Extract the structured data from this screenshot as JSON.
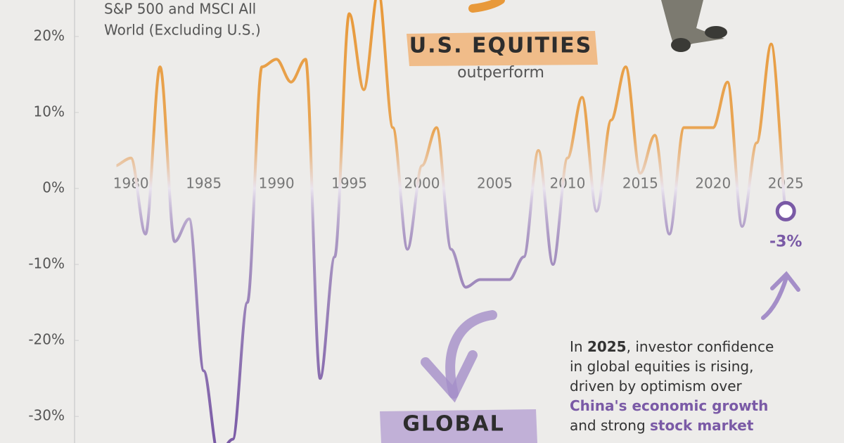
{
  "chart_data": {
    "type": "line",
    "title": [
      "S&P 500 and MSCI All",
      "World (Excluding U.S.)"
    ],
    "upper_label": "U.S. EQUITIES",
    "upper_sublabel": "outperform",
    "lower_label": "GLOBAL",
    "annotation": [
      [
        {
          "text": "In "
        },
        {
          "text": "2025",
          "style": "bold"
        },
        {
          "text": ", investor confidence"
        }
      ],
      [
        {
          "text": "in global equities is rising,"
        }
      ],
      [
        {
          "text": "driven by optimism over"
        }
      ],
      [
        {
          "text": "China's economic growth",
          "style": "highlight"
        }
      ],
      [
        {
          "text": "and strong "
        },
        {
          "text": "stock market",
          "style": "highlight"
        }
      ]
    ],
    "x": [
      1979,
      1980,
      1981,
      1982,
      1983,
      1984,
      1985,
      1986,
      1987,
      1988,
      1989,
      1990,
      1991,
      1992,
      1993,
      1994,
      1995,
      1996,
      1997,
      1998,
      1999,
      2000,
      2001,
      2002,
      2003,
      2004,
      2005,
      2006,
      2007,
      2008,
      2009,
      2010,
      2011,
      2012,
      2013,
      2014,
      2015,
      2016,
      2017,
      2018,
      2019,
      2020,
      2021,
      2022,
      2023,
      2024,
      2025
    ],
    "series": [
      {
        "color": "#e8993a",
        "negative_color": "#7a5aa6",
        "values": [
          3,
          4,
          -6,
          16,
          -7,
          -4,
          -24,
          -35,
          -33,
          -15,
          16,
          17,
          14,
          17,
          -25,
          -9,
          23,
          13,
          26,
          8,
          -8,
          3,
          8,
          -8,
          -13,
          -12,
          -12,
          -12,
          -9,
          5,
          -10,
          4,
          12,
          -3,
          9,
          16,
          2,
          7,
          -6,
          8,
          8,
          8,
          14,
          -5,
          6,
          19,
          -3
        ],
        "value_labels": {
          "46": "-3%"
        }
      }
    ],
    "xlim": [
      1971,
      2029
    ],
    "ylim": [
      -33.5,
      24.8
    ],
    "xticks": [
      1980,
      1985,
      1990,
      1995,
      2000,
      2005,
      2010,
      2015,
      2020,
      2025
    ],
    "yticks": [
      {
        "value": -30,
        "label": "-30%"
      },
      {
        "value": -20,
        "label": "-20%"
      },
      {
        "value": -10,
        "label": "-10%"
      },
      {
        "value": 0,
        "label": "0%"
      },
      {
        "value": 10,
        "label": "10%"
      },
      {
        "value": 20,
        "label": "20%"
      }
    ]
  }
}
